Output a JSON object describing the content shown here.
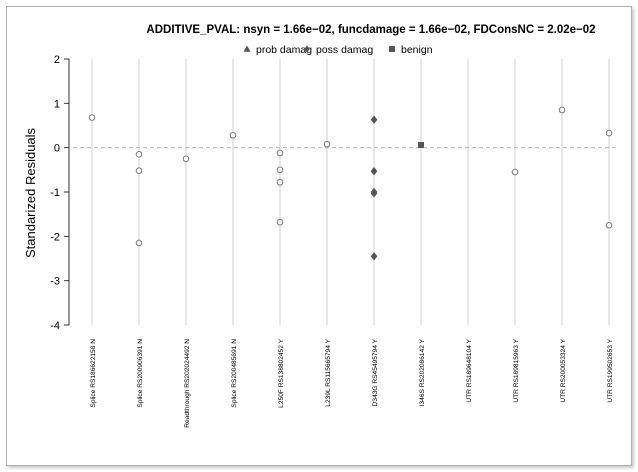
{
  "chart_data": {
    "type": "scatter",
    "title": "ADDITIVE_PVAL: nsyn = 1.66e−02, funcdamage = 1.66e−02, FDConsNC = 2.02e−02",
    "ylabel": "Standarized Residuals",
    "xlabel": "",
    "ylim": [
      -4,
      2
    ],
    "yticks": [
      -4,
      -3,
      -2,
      -1,
      0,
      1,
      2
    ],
    "reference_line": 0,
    "grid": "vertical lines per category",
    "legend": {
      "placement": "top",
      "entries": [
        {
          "label": "prob damag",
          "marker": "triangle"
        },
        {
          "label": "poss damag",
          "marker": "diamond"
        },
        {
          "label": "benign",
          "marker": "square"
        }
      ]
    },
    "categories": [
      "Splice RS186622158   N",
      "Splice RS200906391   N",
      "Readthrough RS202024492   N",
      "Splice RS200485691   N",
      "L250F RS138802452   Y",
      "L239L RS115665794   Y",
      "D343G RS45495794   Y",
      "I346S RS202086142   Y",
      "UTR RS189648104   Y",
      "UTR RS189815963   Y",
      "UTR RS200053324   Y",
      "UTR RS199502653   Y"
    ],
    "points": [
      {
        "category": 0,
        "y": 0.68,
        "marker": "circle"
      },
      {
        "category": 1,
        "y": -0.15,
        "marker": "circle"
      },
      {
        "category": 1,
        "y": -0.52,
        "marker": "circle"
      },
      {
        "category": 1,
        "y": -2.15,
        "marker": "circle"
      },
      {
        "category": 2,
        "y": -0.25,
        "marker": "circle"
      },
      {
        "category": 3,
        "y": 0.28,
        "marker": "circle"
      },
      {
        "category": 4,
        "y": -0.12,
        "marker": "circle"
      },
      {
        "category": 4,
        "y": -0.5,
        "marker": "circle"
      },
      {
        "category": 4,
        "y": -0.78,
        "marker": "circle"
      },
      {
        "category": 4,
        "y": -1.68,
        "marker": "circle"
      },
      {
        "category": 5,
        "y": 0.08,
        "marker": "circle"
      },
      {
        "category": 6,
        "y": 0.63,
        "marker": "diamond"
      },
      {
        "category": 6,
        "y": -0.53,
        "marker": "diamond"
      },
      {
        "category": 6,
        "y": -1.0,
        "marker": "diamond"
      },
      {
        "category": 6,
        "y": -1.03,
        "marker": "diamond"
      },
      {
        "category": 6,
        "y": -2.45,
        "marker": "diamond"
      },
      {
        "category": 7,
        "y": 0.06,
        "marker": "square"
      },
      {
        "category": 9,
        "y": -0.55,
        "marker": "circle"
      },
      {
        "category": 10,
        "y": 0.85,
        "marker": "circle"
      },
      {
        "category": 11,
        "y": 0.33,
        "marker": "circle"
      },
      {
        "category": 11,
        "y": -1.75,
        "marker": "circle"
      }
    ]
  },
  "colors": {
    "vline": "#cfcfcf",
    "refline": "#b8b8b8",
    "circle_stroke": "#7a7a7a",
    "filled_marker": "#555555",
    "axis": "#333333"
  }
}
